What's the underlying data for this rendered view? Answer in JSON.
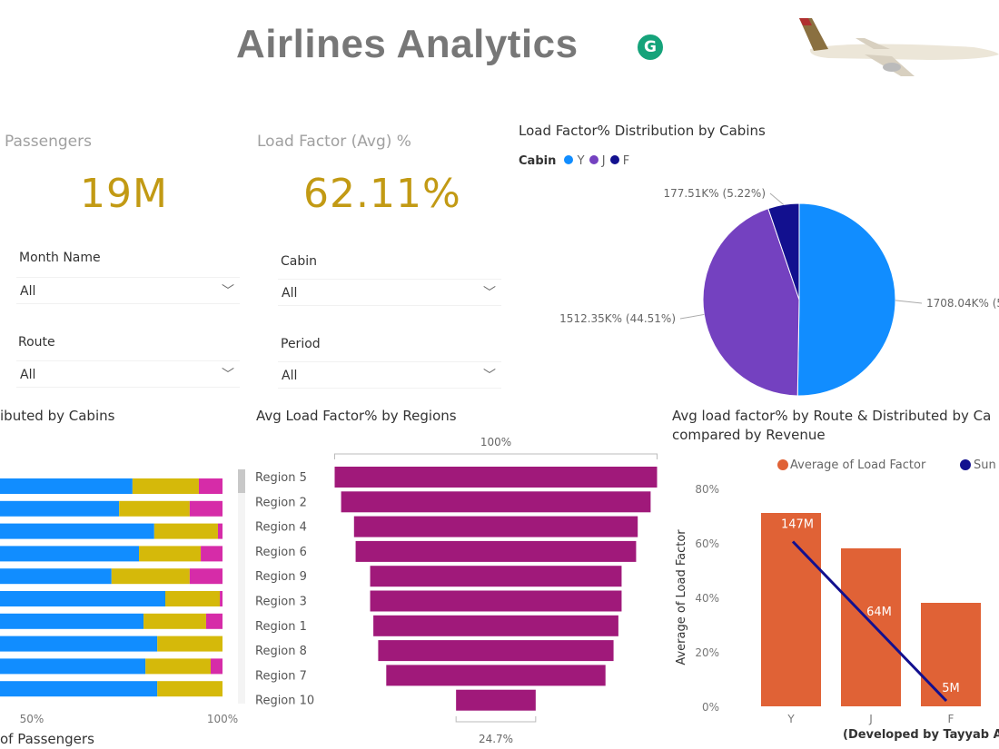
{
  "header": {
    "title": "Airlines Analytics",
    "grammarly_glyph": "G"
  },
  "kpis": [
    {
      "label": "Passengers",
      "value": "19M"
    },
    {
      "label": "Load Factor (Avg) %",
      "value": "62.11%"
    }
  ],
  "slicers": [
    {
      "label": "Month Name",
      "value": "All"
    },
    {
      "label": "Cabin",
      "value": "All"
    },
    {
      "label": "Route",
      "value": "All"
    },
    {
      "label": "Period",
      "value": "All"
    }
  ],
  "colors": {
    "kpi": "#c29a14",
    "Y": "#118dff",
    "J": "#7441c0",
    "F": "#12108f",
    "seg1": "#118dff",
    "seg2": "#d5b90a",
    "seg3": "#d62ca8",
    "funnel": "#a0197a",
    "bar": "#e06236",
    "line": "#12108f"
  },
  "chart_data": [
    {
      "type": "pie",
      "title": "Load Factor% Distribution by Cabins",
      "legend_title": "Cabin",
      "legend_placement": "top-left",
      "slices": [
        {
          "name": "Y",
          "label": "1708.04K% (5",
          "value": 1708.04
        },
        {
          "name": "J",
          "label": "1512.35K% (44.51%)",
          "value": 1512.35
        },
        {
          "name": "F",
          "label": "177.51K% (5.22%)",
          "value": 177.51
        }
      ]
    },
    {
      "type": "bar",
      "orientation": "horizontal-stacked-100",
      "title": "ibuted by Cabins",
      "xlabel": "of Passengers",
      "xticks": [
        "50%",
        "100%"
      ],
      "series": [
        {
          "values": [
            76.4,
            72.9,
            82.1,
            78.1,
            70.9,
            85,
            79.3,
            82.9,
            79.8,
            82.9
          ]
        },
        {
          "values": [
            17.4,
            18.5,
            16.7,
            16.2,
            20.5,
            14.3,
            16.4,
            17.1,
            17.1,
            17.1
          ]
        },
        {
          "values": [
            6.2,
            8.6,
            1.2,
            5.7,
            8.6,
            0.7,
            4.3,
            0,
            3.1,
            0
          ]
        }
      ]
    },
    {
      "type": "funnel",
      "title": "Avg Load Factor% by Regions",
      "top_label": "100%",
      "bottom_label": "24.7%",
      "categories": [
        "Region 5",
        "Region 2",
        "Region 4",
        "Region 6",
        "Region 9",
        "Region 3",
        "Region 1",
        "Region 8",
        "Region 7",
        "Region 10"
      ],
      "values": [
        100,
        96,
        88,
        87,
        78,
        78,
        76,
        73,
        68,
        24.7
      ]
    },
    {
      "type": "bar+line",
      "title": "Avg load factor% by Route & Distributed by Ca",
      "subtitle": "compared by Revenue",
      "legend": [
        "Average of Load Factor",
        "Sun"
      ],
      "legend_placement": "top",
      "ylabel": "Average of Load Factor",
      "yticks": [
        "0%",
        "20%",
        "40%",
        "60%",
        "80%"
      ],
      "ylim": [
        0,
        80
      ],
      "categories": [
        "Y",
        "J",
        "F"
      ],
      "bars": [
        71,
        58,
        38
      ],
      "line": [
        147,
        64,
        5
      ],
      "line_labels": [
        "147M",
        "64M",
        "5M"
      ]
    }
  ],
  "footer": "(Developed by Tayyab A"
}
